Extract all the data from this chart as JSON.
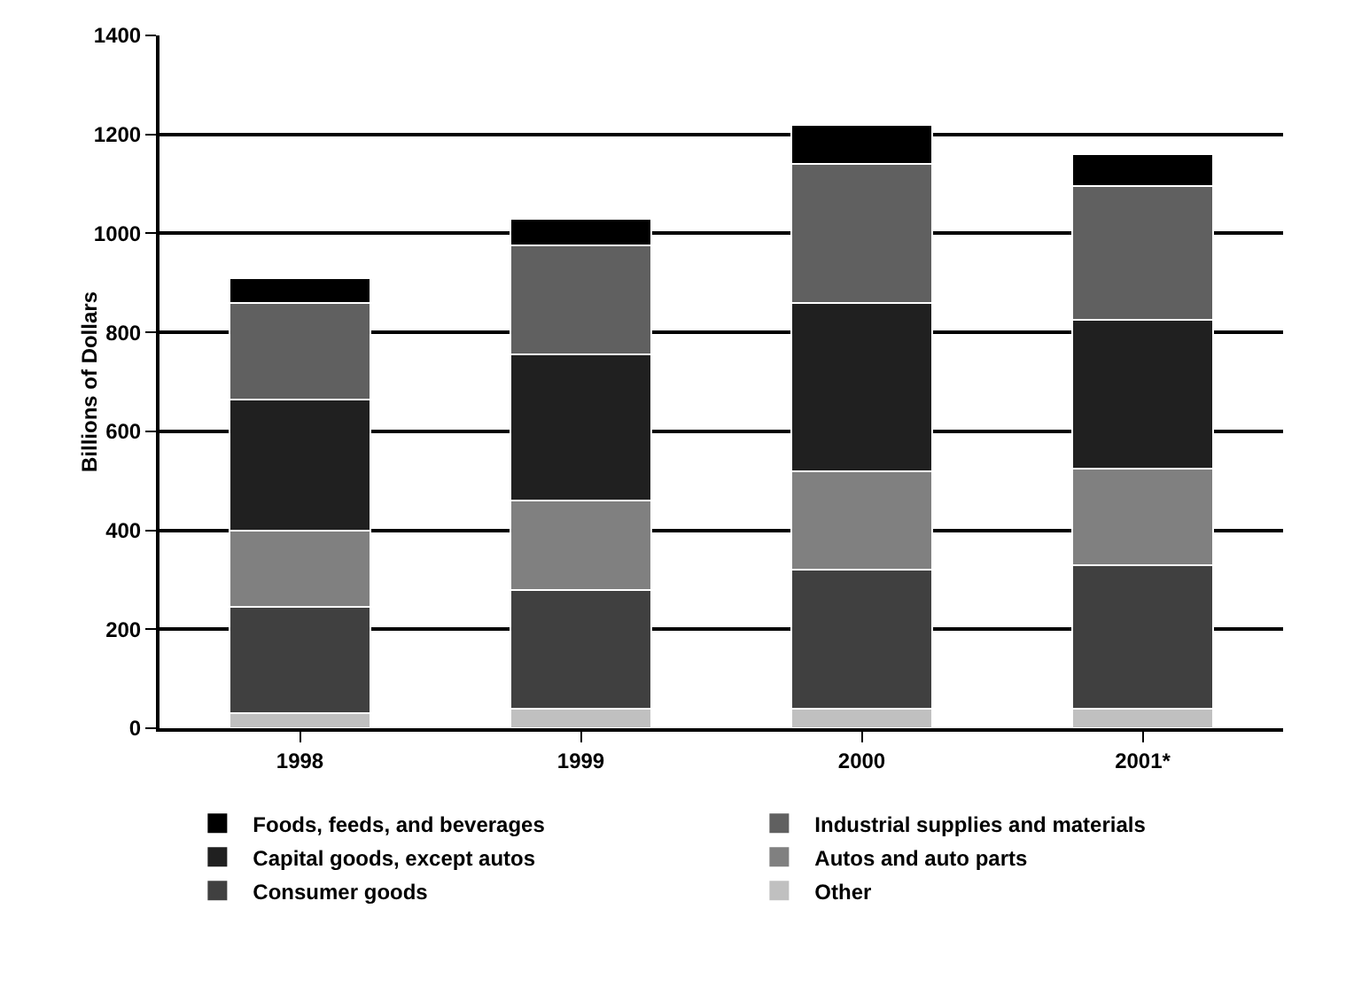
{
  "chart_data": {
    "type": "bar",
    "stacked": true,
    "ylabel": "Billions of Dollars",
    "categories": [
      "1998",
      "1999",
      "2000",
      "2001*"
    ],
    "series": [
      {
        "name": "Other",
        "color": "#c0c0c0",
        "values": [
          30,
          40,
          40,
          40
        ]
      },
      {
        "name": "Consumer goods",
        "color": "#404040",
        "values": [
          215,
          240,
          280,
          290
        ]
      },
      {
        "name": "Autos and auto parts",
        "color": "#808080",
        "values": [
          155,
          180,
          200,
          195
        ]
      },
      {
        "name": "Capital goods, except autos",
        "color": "#202020",
        "values": [
          265,
          295,
          340,
          300
        ]
      },
      {
        "name": "Industrial supplies and materials",
        "color": "#606060",
        "values": [
          195,
          220,
          280,
          270
        ]
      },
      {
        "name": "Foods, feeds, and beverages",
        "color": "#000000",
        "values": [
          50,
          55,
          80,
          65
        ]
      }
    ],
    "ylim": [
      0,
      1400
    ],
    "yticks": [
      0,
      200,
      400,
      600,
      800,
      1000,
      1200,
      1400
    ],
    "grid": "y",
    "legend": "bottom"
  }
}
